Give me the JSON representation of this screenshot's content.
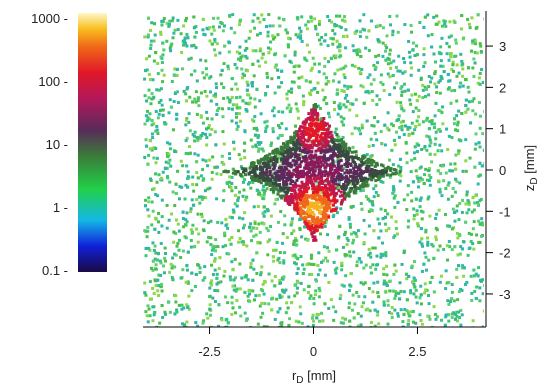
{
  "chart_data": {
    "type": "heatmap",
    "title": "",
    "xlabel": "r_D [mm]",
    "ylabel": "z_D [mm]",
    "xlim": [
      -4.1,
      4.1
    ],
    "ylim": [
      -3.8,
      3.8
    ],
    "xticks": [
      -2.5,
      0,
      2.5
    ],
    "xtick_labels": [
      "-2.5",
      "0",
      "2.5"
    ],
    "yticks": [
      3,
      2,
      1,
      0,
      -1,
      -2,
      -3
    ],
    "ytick_labels": [
      "3",
      "2",
      "1",
      "0",
      "-1",
      "-2",
      "-3"
    ],
    "y_axis_side": "right",
    "grid": false,
    "distribution": {
      "shape": "four-cusped astroid (diamond) centered at the origin",
      "center": [
        0,
        0
      ],
      "r_half_width_mm": 2.1,
      "z_half_height_mm": 1.7,
      "peak_density_location": [
        0,
        -0.9
      ],
      "secondary_peak_location": [
        0,
        1.0
      ],
      "background": "sparse uniform counts of about 1-10 across the full field"
    },
    "colorbar": {
      "position": "left",
      "scale": "log",
      "range": [
        0.1,
        1000
      ],
      "ticks": [
        1000,
        100,
        10,
        1,
        0.1
      ],
      "tick_labels": [
        "1000 -",
        "100 -",
        "10 -",
        "1 -",
        "0.1 -"
      ],
      "colors": [
        "#1a0a45",
        "#1020d8",
        "#14b8e6",
        "#22d048",
        "#3a7a3a",
        "#5a2a5a",
        "#b4185a",
        "#e01828",
        "#f06818",
        "#f8c020",
        "#fff7c8"
      ]
    }
  }
}
